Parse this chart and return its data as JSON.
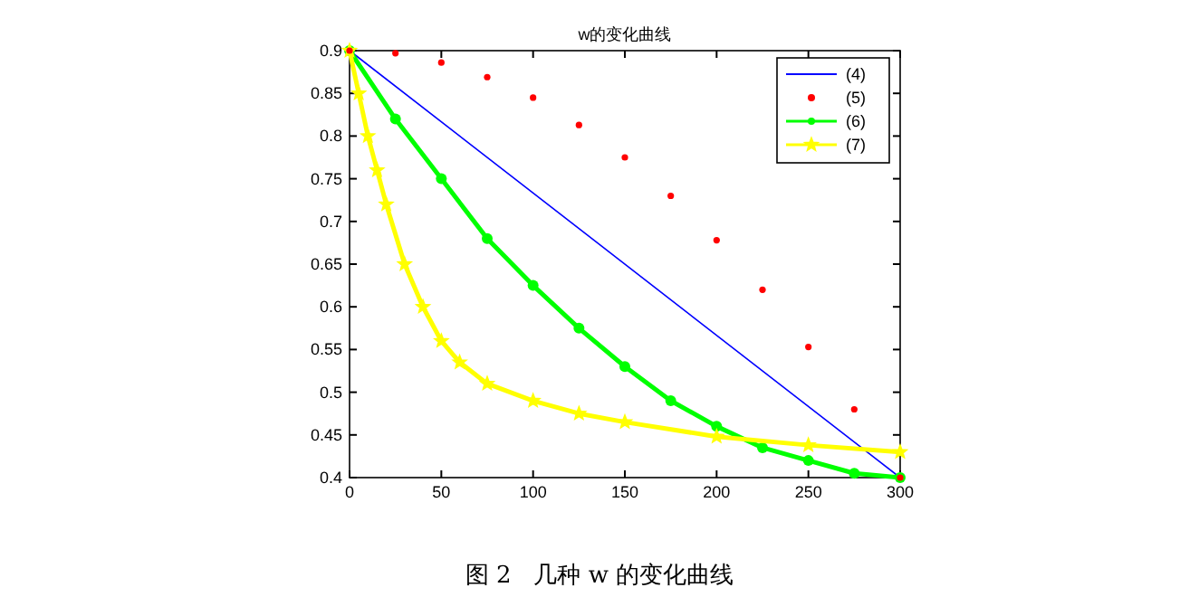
{
  "chart_data": {
    "type": "line",
    "title": "w的变化曲线",
    "x": [
      0,
      25,
      50,
      75,
      100,
      125,
      150,
      175,
      200,
      225,
      250,
      275,
      300
    ],
    "xlim": [
      0,
      300
    ],
    "xticks": [
      0,
      50,
      100,
      150,
      200,
      250,
      300
    ],
    "ylim": [
      0.4,
      0.9
    ],
    "yticks": [
      0.4,
      0.45,
      0.5,
      0.55,
      0.6,
      0.65,
      0.7,
      0.75,
      0.8,
      0.85,
      0.9
    ],
    "grid": false,
    "legend": "top right",
    "series": [
      {
        "name": "(4)",
        "color": "#0000ff",
        "type": "line",
        "marker": "none",
        "x": [
          0,
          300
        ],
        "values": [
          0.9,
          0.4
        ]
      },
      {
        "name": "(5)",
        "color": "#ff0000",
        "type": "scatter",
        "marker": "circle",
        "values": [
          0.9,
          0.897,
          0.886,
          0.869,
          0.845,
          0.813,
          0.775,
          0.73,
          0.678,
          0.62,
          0.553,
          0.48,
          0.4
        ]
      },
      {
        "name": "(6)",
        "color": "#00ff00",
        "type": "line",
        "marker": "circle",
        "values": [
          0.9,
          0.82,
          0.75,
          0.68,
          0.625,
          0.575,
          0.53,
          0.49,
          0.46,
          0.435,
          0.42,
          0.405,
          0.4
        ]
      },
      {
        "name": "(7)",
        "color": "#ffff00",
        "type": "line",
        "marker": "star",
        "x": [
          0,
          5,
          10,
          15,
          20,
          30,
          40,
          50,
          60,
          75,
          100,
          125,
          150,
          200,
          250,
          300
        ],
        "values": [
          0.9,
          0.85,
          0.8,
          0.76,
          0.72,
          0.65,
          0.6,
          0.56,
          0.535,
          0.51,
          0.49,
          0.475,
          0.465,
          0.448,
          0.438,
          0.43
        ]
      }
    ],
    "annotations": [
      "图 2   几种 w 的变化曲线"
    ]
  }
}
